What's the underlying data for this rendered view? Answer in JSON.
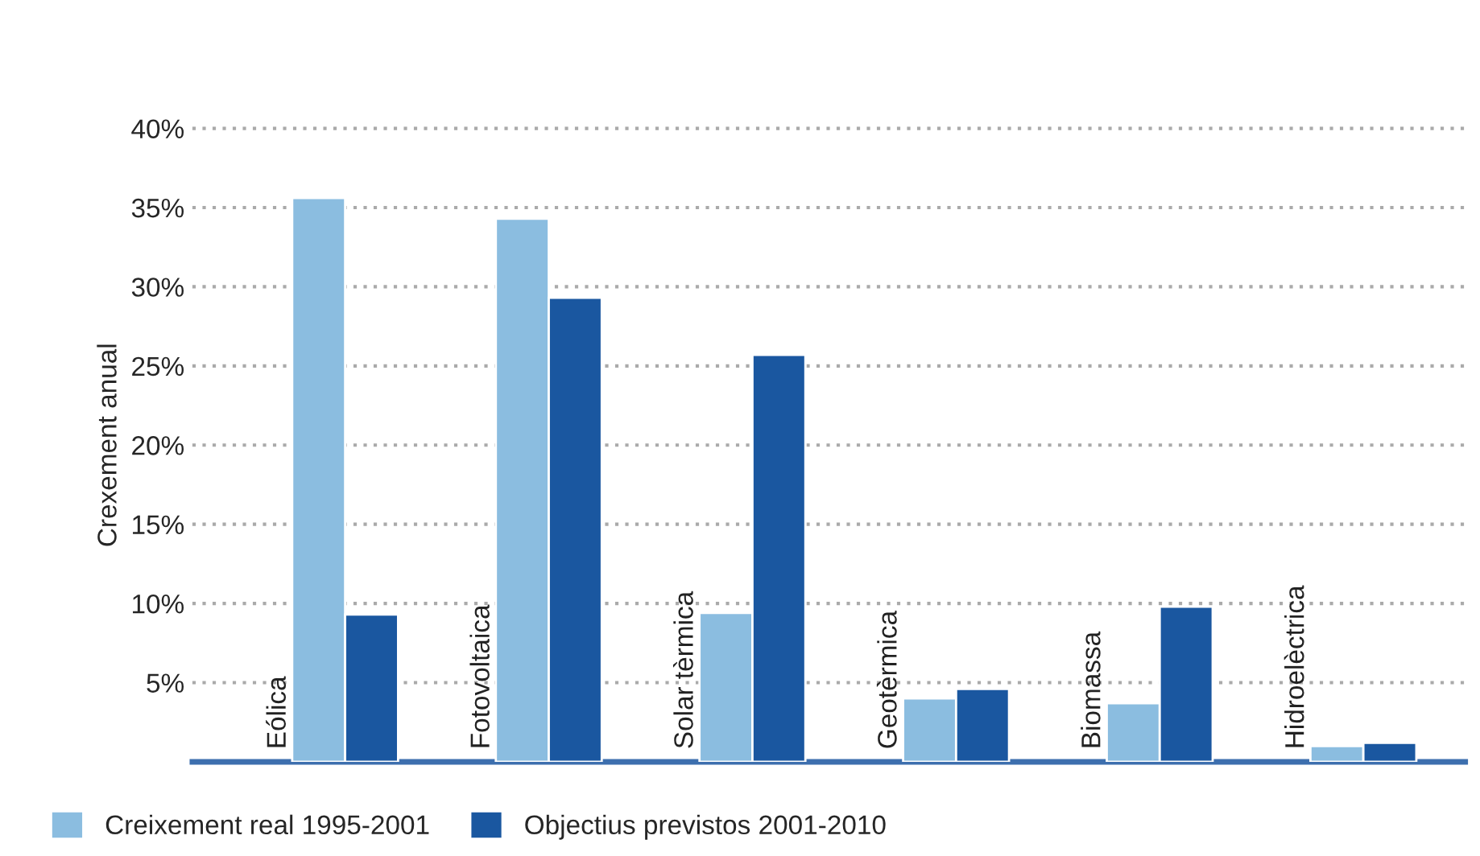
{
  "chart_data": {
    "type": "bar",
    "ylabel": "Crexement anual",
    "categories": [
      "Eólica",
      "Fotovoltaica",
      "Solar tèrmica",
      "Geotèrmica",
      "Biomassa",
      "Hidroelèctrica"
    ],
    "series": [
      {
        "name": "Creixement real 1995-2001",
        "color": "#8bbde0",
        "values": [
          35.6,
          34.3,
          9.4,
          4.0,
          3.7,
          1.0
        ]
      },
      {
        "name": "Objectius previstos 2001-2010",
        "color": "#1a57a0",
        "values": [
          9.3,
          29.3,
          25.7,
          4.6,
          9.8,
          1.2
        ]
      }
    ],
    "ylim": [
      0,
      40
    ],
    "yticks": [
      {
        "value": 5,
        "label": "5%"
      },
      {
        "value": 10,
        "label": "10%"
      },
      {
        "value": 15,
        "label": "15%"
      },
      {
        "value": 20,
        "label": "20%"
      },
      {
        "value": 25,
        "label": "25%"
      },
      {
        "value": 30,
        "label": "30%"
      },
      {
        "value": 35,
        "label": "35%"
      },
      {
        "value": 40,
        "label": "40%"
      }
    ],
    "grid": "y",
    "legend": "bottom left"
  }
}
